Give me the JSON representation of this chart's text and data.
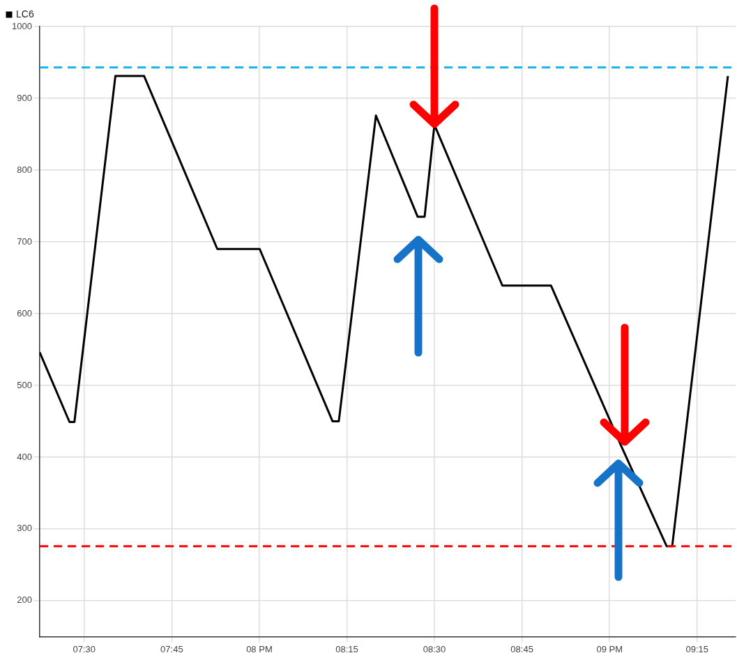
{
  "chart_data": {
    "type": "line",
    "x": [
      7.373,
      7.458,
      7.472,
      7.589,
      7.671,
      7.88,
      8.001,
      8.209,
      8.227,
      8.333,
      8.452,
      8.472,
      8.5,
      8.694,
      8.833,
      9.032,
      9.163,
      9.179,
      9.338
    ],
    "series": [
      {
        "name": "LC6",
        "color": "#000000",
        "values": [
          546,
          449,
          449,
          931,
          931,
          690,
          690,
          450,
          450,
          876,
          735,
          735,
          863,
          639,
          639,
          417,
          276,
          276,
          931
        ]
      }
    ],
    "xlim": [
      7.373,
      9.36
    ],
    "xticks": [
      {
        "value": 7.5,
        "label": "07:30"
      },
      {
        "value": 7.75,
        "label": "07:45"
      },
      {
        "value": 8,
        "label": "08 PM"
      },
      {
        "value": 8.25,
        "label": "08:15"
      },
      {
        "value": 8.5,
        "label": "08:30"
      },
      {
        "value": 8.75,
        "label": "08:45"
      },
      {
        "value": 9,
        "label": "09 PM"
      },
      {
        "value": 9.25,
        "label": "09:15"
      }
    ],
    "ylim": [
      150,
      1000
    ],
    "yticks": [
      200,
      300,
      400,
      500,
      600,
      700,
      800,
      900,
      1000
    ],
    "ref_lines": [
      {
        "axis": "y",
        "value": 943,
        "color": "#18b4e8",
        "line_style": "dashed"
      },
      {
        "axis": "y",
        "value": 276,
        "color": "#ff0000",
        "line_style": "dashed"
      }
    ],
    "grid": true,
    "legend": "top left",
    "marker": "none",
    "line_style": "solid"
  }
}
